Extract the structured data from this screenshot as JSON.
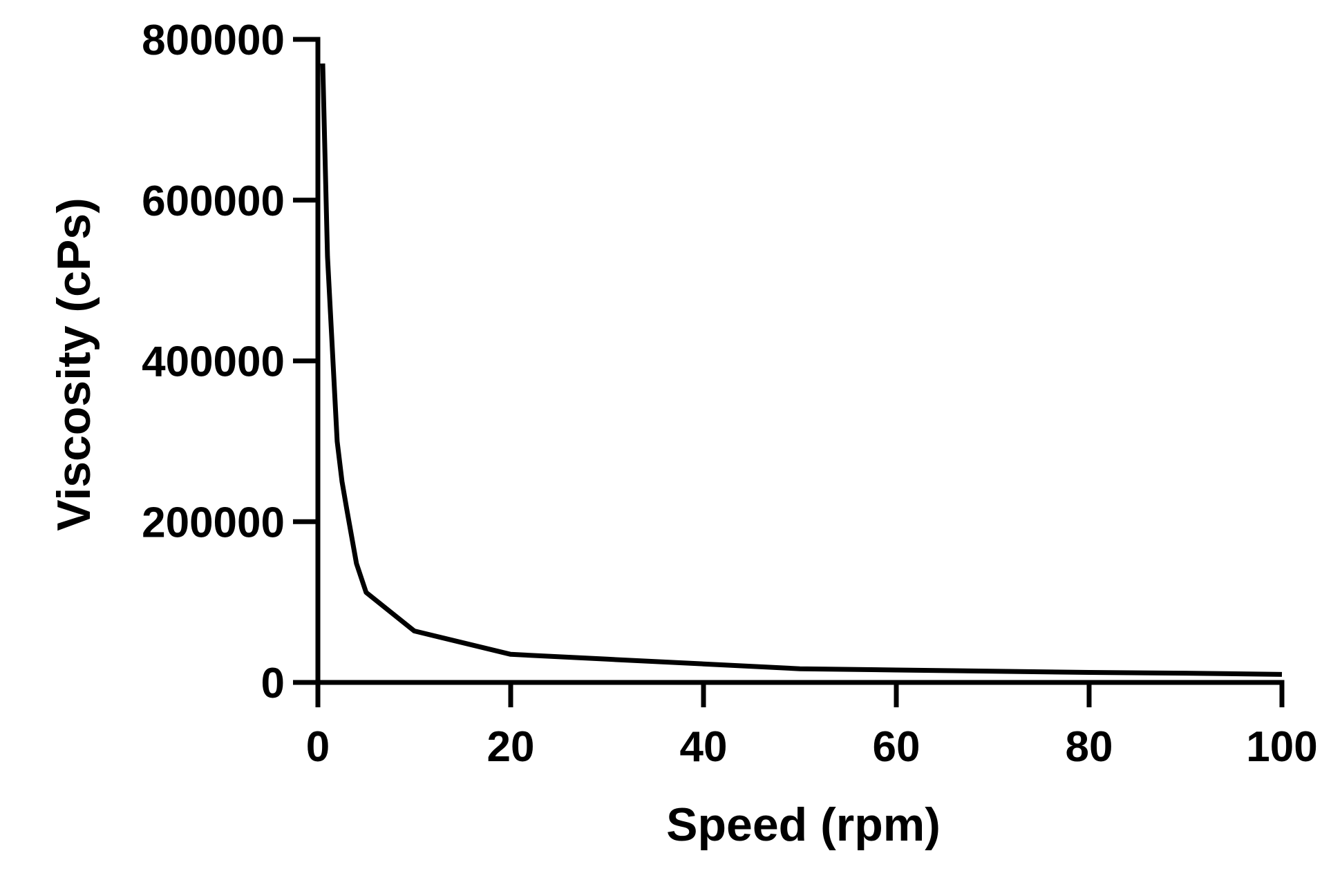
{
  "chart_data": {
    "type": "line",
    "title": "",
    "xlabel": "Speed (rpm)",
    "ylabel": "Viscosity (cPs)",
    "xlim": [
      0,
      100
    ],
    "ylim": [
      0,
      800000
    ],
    "x_ticks": [
      0,
      20,
      40,
      60,
      80,
      100
    ],
    "y_ticks": [
      0,
      200000,
      400000,
      600000,
      800000
    ],
    "x_tick_labels": [
      "0",
      "20",
      "40",
      "60",
      "80",
      "100"
    ],
    "y_tick_labels": [
      "0",
      "200000",
      "400000",
      "600000",
      "800000"
    ],
    "grid": false,
    "legend": "none",
    "colors": {
      "line": "#000000",
      "axis": "#000000"
    },
    "series": [
      {
        "x": [
          0.5,
          1,
          2,
          2.5,
          3,
          4,
          5,
          10,
          20,
          30,
          40,
          50,
          60,
          70,
          80,
          90,
          100
        ],
        "y": [
          770000,
          530000,
          300000,
          250000,
          215000,
          148000,
          112000,
          64000,
          35000,
          29000,
          23000,
          17000,
          15500,
          14000,
          12500,
          11500,
          10000
        ]
      }
    ]
  }
}
